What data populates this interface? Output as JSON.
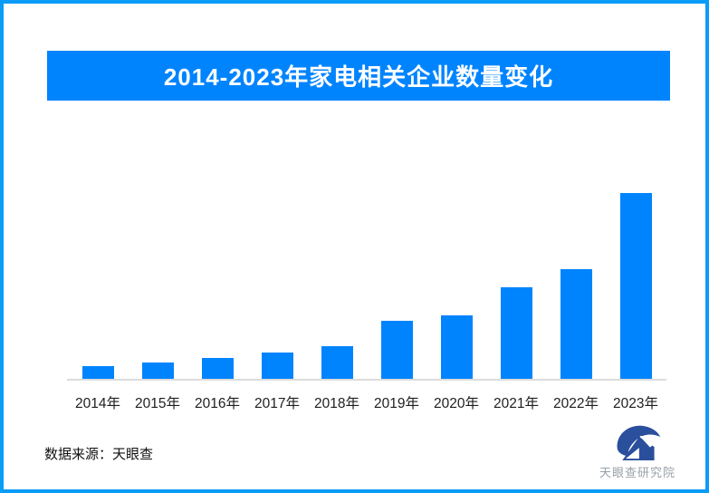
{
  "page": {
    "background": "#ffffff",
    "border_color": "#0a9cf7"
  },
  "banner": {
    "title": "2014-2023年家电相关企业数量变化",
    "bg_color": "#0084fe",
    "text_color": "#ffffff"
  },
  "chart_data": {
    "type": "bar",
    "title": "2014-2023年家电相关企业数量变化",
    "categories": [
      "2014年",
      "2015年",
      "2016年",
      "2017年",
      "2018年",
      "2019年",
      "2020年",
      "2021年",
      "2022年",
      "2023年"
    ],
    "values": [
      15,
      19,
      24,
      30,
      37,
      65,
      71,
      102,
      122,
      206
    ],
    "values_note": "no numeric y-axis shown in image; values are estimated relative bar heights",
    "xlabel": "",
    "ylabel": "",
    "bar_color": "#0084fe",
    "axis_line_color": "#dcdcdc",
    "grid": false,
    "legend": false
  },
  "footer": {
    "source_text": "数据来源：天眼查",
    "logo_name": "天眼查研究院",
    "logo_mark_color": "#2a4f9c",
    "logo_text_color": "#98a0a8"
  }
}
